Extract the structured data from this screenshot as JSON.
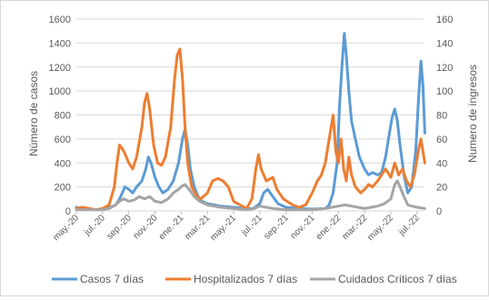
{
  "chart_data": {
    "type": "line",
    "y_left": {
      "label": "Número de casos",
      "range": [
        0,
        1600
      ],
      "ticks": [
        "0",
        "200",
        "400",
        "600",
        "800",
        "1000",
        "1200",
        "1400",
        "1600"
      ]
    },
    "y_right": {
      "label": "Numero de ingresos",
      "range": [
        0,
        160
      ],
      "ticks": [
        "0",
        "20",
        "40",
        "60",
        "80",
        "100",
        "120",
        "140",
        "160"
      ]
    },
    "x_range": [
      0,
      26.5
    ],
    "x_tick_labels": [
      "may.-20",
      "jul.-20",
      "sep.-20",
      "nov.-20",
      "ene.-21",
      "mar.-21",
      "may.-21",
      "jul.-21",
      "sep.-21",
      "nov.-21",
      "ene.-22",
      "mar.-22",
      "may.-22",
      "jul.-22"
    ],
    "x_tick_months": [
      0,
      2,
      4,
      6,
      8,
      10,
      12,
      14,
      16,
      18,
      20,
      22,
      24,
      26
    ],
    "grid": true,
    "legend_position": "bottom",
    "series": [
      {
        "name": "Casos 7 días",
        "axis": "left",
        "color": "#5b9bd5",
        "points": [
          [
            0,
            30
          ],
          [
            0.5,
            20
          ],
          [
            1,
            15
          ],
          [
            1.5,
            10
          ],
          [
            2,
            15
          ],
          [
            2.5,
            25
          ],
          [
            3,
            50
          ],
          [
            3.3,
            100
          ],
          [
            3.5,
            150
          ],
          [
            3.7,
            200
          ],
          [
            4,
            180
          ],
          [
            4.3,
            150
          ],
          [
            4.6,
            200
          ],
          [
            5,
            250
          ],
          [
            5.3,
            350
          ],
          [
            5.5,
            450
          ],
          [
            5.7,
            400
          ],
          [
            6,
            280
          ],
          [
            6.3,
            200
          ],
          [
            6.6,
            150
          ],
          [
            7,
            180
          ],
          [
            7.4,
            250
          ],
          [
            7.8,
            400
          ],
          [
            8.1,
            600
          ],
          [
            8.3,
            680
          ],
          [
            8.5,
            550
          ],
          [
            8.7,
            350
          ],
          [
            9,
            200
          ],
          [
            9.3,
            120
          ],
          [
            9.6,
            80
          ],
          [
            10,
            60
          ],
          [
            10.5,
            50
          ],
          [
            11,
            40
          ],
          [
            11.5,
            35
          ],
          [
            12,
            30
          ],
          [
            12.5,
            25
          ],
          [
            13,
            20
          ],
          [
            13.5,
            20
          ],
          [
            14,
            60
          ],
          [
            14.3,
            150
          ],
          [
            14.6,
            180
          ],
          [
            15,
            120
          ],
          [
            15.4,
            60
          ],
          [
            16,
            30
          ],
          [
            17,
            20
          ],
          [
            18,
            15
          ],
          [
            19,
            20
          ],
          [
            19.3,
            50
          ],
          [
            19.6,
            150
          ],
          [
            19.9,
            400
          ],
          [
            20.1,
            900
          ],
          [
            20.3,
            1250
          ],
          [
            20.45,
            1480
          ],
          [
            20.6,
            1300
          ],
          [
            20.8,
            1000
          ],
          [
            21,
            750
          ],
          [
            21.3,
            600
          ],
          [
            21.6,
            450
          ],
          [
            22,
            350
          ],
          [
            22.3,
            300
          ],
          [
            22.6,
            320
          ],
          [
            23,
            300
          ],
          [
            23.3,
            320
          ],
          [
            23.6,
            450
          ],
          [
            23.9,
            650
          ],
          [
            24.1,
            780
          ],
          [
            24.3,
            850
          ],
          [
            24.5,
            750
          ],
          [
            24.7,
            550
          ],
          [
            25,
            300
          ],
          [
            25.3,
            150
          ],
          [
            25.6,
            200
          ],
          [
            25.9,
            500
          ],
          [
            26.1,
            900
          ],
          [
            26.3,
            1250
          ],
          [
            26.45,
            1050
          ],
          [
            26.6,
            650
          ]
        ]
      },
      {
        "name": "Hospitalizados 7 días",
        "axis": "right",
        "color": "#ed7d31",
        "points": [
          [
            0,
            2
          ],
          [
            0.5,
            3
          ],
          [
            1,
            2
          ],
          [
            1.5,
            1
          ],
          [
            2,
            2
          ],
          [
            2.5,
            5
          ],
          [
            2.9,
            20
          ],
          [
            3.1,
            40
          ],
          [
            3.3,
            55
          ],
          [
            3.5,
            52
          ],
          [
            3.7,
            48
          ],
          [
            4,
            40
          ],
          [
            4.3,
            35
          ],
          [
            4.6,
            45
          ],
          [
            5,
            70
          ],
          [
            5.2,
            90
          ],
          [
            5.4,
            98
          ],
          [
            5.6,
            85
          ],
          [
            5.9,
            55
          ],
          [
            6.2,
            40
          ],
          [
            6.5,
            38
          ],
          [
            6.8,
            45
          ],
          [
            7.2,
            70
          ],
          [
            7.5,
            110
          ],
          [
            7.7,
            130
          ],
          [
            7.9,
            135
          ],
          [
            8.1,
            110
          ],
          [
            8.3,
            70
          ],
          [
            8.5,
            40
          ],
          [
            8.8,
            20
          ],
          [
            9.2,
            12
          ],
          [
            9.5,
            10
          ],
          [
            10,
            15
          ],
          [
            10.4,
            25
          ],
          [
            10.8,
            27
          ],
          [
            11.2,
            25
          ],
          [
            11.6,
            20
          ],
          [
            12,
            8
          ],
          [
            12.5,
            5
          ],
          [
            13,
            2
          ],
          [
            13.4,
            10
          ],
          [
            13.7,
            35
          ],
          [
            13.9,
            47
          ],
          [
            14.1,
            35
          ],
          [
            14.5,
            25
          ],
          [
            15,
            28
          ],
          [
            15.3,
            18
          ],
          [
            15.8,
            10
          ],
          [
            16.5,
            5
          ],
          [
            17,
            3
          ],
          [
            17.5,
            5
          ],
          [
            18,
            15
          ],
          [
            18.4,
            25
          ],
          [
            18.7,
            30
          ],
          [
            19,
            40
          ],
          [
            19.3,
            60
          ],
          [
            19.6,
            80
          ],
          [
            19.8,
            50
          ],
          [
            20,
            40
          ],
          [
            20.2,
            60
          ],
          [
            20.4,
            35
          ],
          [
            20.6,
            25
          ],
          [
            20.8,
            45
          ],
          [
            21,
            30
          ],
          [
            21.3,
            20
          ],
          [
            21.7,
            15
          ],
          [
            22,
            18
          ],
          [
            22.3,
            22
          ],
          [
            22.6,
            20
          ],
          [
            23,
            25
          ],
          [
            23.3,
            30
          ],
          [
            23.6,
            35
          ],
          [
            24,
            28
          ],
          [
            24.3,
            40
          ],
          [
            24.6,
            30
          ],
          [
            24.9,
            35
          ],
          [
            25.2,
            25
          ],
          [
            25.5,
            20
          ],
          [
            25.8,
            30
          ],
          [
            26.1,
            50
          ],
          [
            26.3,
            60
          ],
          [
            26.45,
            50
          ],
          [
            26.6,
            40
          ]
        ]
      },
      {
        "name": "Cuidados Críticos 7 días",
        "axis": "right",
        "color": "#a5a5a5",
        "points": [
          [
            0,
            1
          ],
          [
            1,
            1
          ],
          [
            2,
            1
          ],
          [
            2.5,
            2
          ],
          [
            3,
            5
          ],
          [
            3.3,
            8
          ],
          [
            3.6,
            10
          ],
          [
            4,
            8
          ],
          [
            4.4,
            9
          ],
          [
            4.8,
            12
          ],
          [
            5.2,
            10
          ],
          [
            5.6,
            12
          ],
          [
            6,
            8
          ],
          [
            6.5,
            7
          ],
          [
            7,
            10
          ],
          [
            7.4,
            15
          ],
          [
            7.8,
            18
          ],
          [
            8.1,
            21
          ],
          [
            8.3,
            22
          ],
          [
            8.6,
            18
          ],
          [
            9,
            12
          ],
          [
            9.4,
            8
          ],
          [
            10,
            5
          ],
          [
            11,
            3
          ],
          [
            12,
            2
          ],
          [
            13,
            1
          ],
          [
            13.6,
            2
          ],
          [
            14,
            4
          ],
          [
            14.5,
            3
          ],
          [
            15,
            2
          ],
          [
            16,
            1
          ],
          [
            17,
            1
          ],
          [
            18,
            1
          ],
          [
            19,
            2
          ],
          [
            19.5,
            3
          ],
          [
            20,
            4
          ],
          [
            20.5,
            5
          ],
          [
            21,
            4
          ],
          [
            21.5,
            3
          ],
          [
            22,
            2
          ],
          [
            22.5,
            3
          ],
          [
            23,
            4
          ],
          [
            23.5,
            6
          ],
          [
            24,
            10
          ],
          [
            24.3,
            22
          ],
          [
            24.5,
            25
          ],
          [
            24.7,
            20
          ],
          [
            25,
            12
          ],
          [
            25.3,
            5
          ],
          [
            25.6,
            4
          ],
          [
            26,
            3
          ],
          [
            26.6,
            2
          ]
        ]
      }
    ]
  }
}
